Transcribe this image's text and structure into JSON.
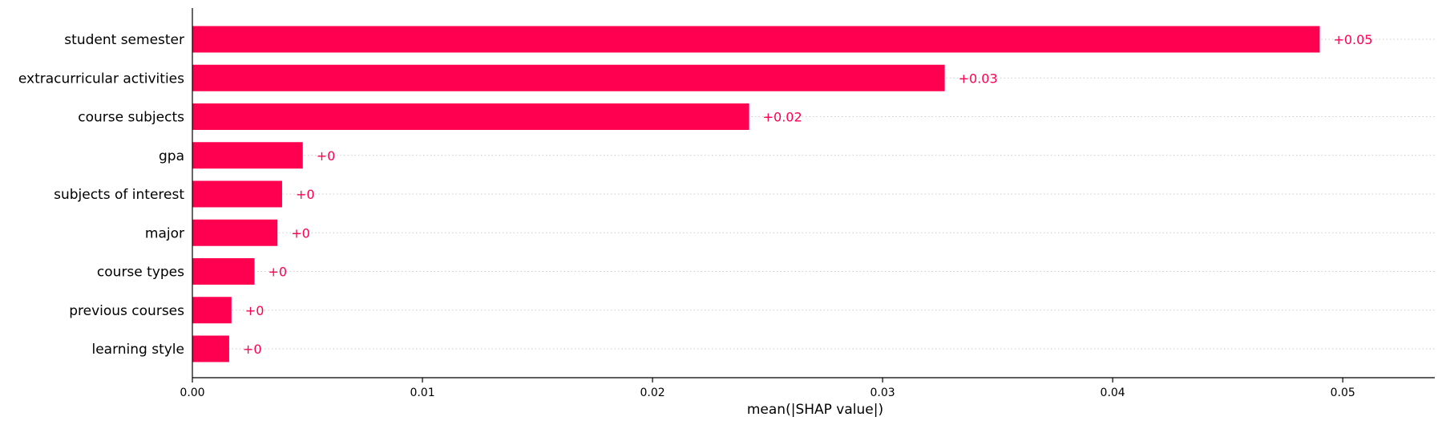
{
  "chart_data": {
    "type": "bar",
    "orientation": "horizontal",
    "categories": [
      "student semester",
      "extracurricular activities",
      "course subjects",
      "gpa",
      "subjects of interest",
      "major",
      "course types",
      "previous courses",
      "learning style"
    ],
    "values": [
      0.049,
      0.0327,
      0.0242,
      0.0048,
      0.0039,
      0.0037,
      0.0027,
      0.0017,
      0.0016
    ],
    "value_labels": [
      "+0.05",
      "+0.03",
      "+0.02",
      "+0",
      "+0",
      "+0",
      "+0",
      "+0",
      "+0"
    ],
    "xlabel": "mean(|SHAP value|)",
    "xlim": [
      0,
      0.054
    ],
    "xticks": [
      0.0,
      0.01,
      0.02,
      0.03,
      0.04,
      0.05
    ],
    "xtick_labels": [
      "0.00",
      "0.01",
      "0.02",
      "0.03",
      "0.04",
      "0.05"
    ],
    "grid": "horizontal dotted",
    "bar_color": "#ff0051"
  }
}
